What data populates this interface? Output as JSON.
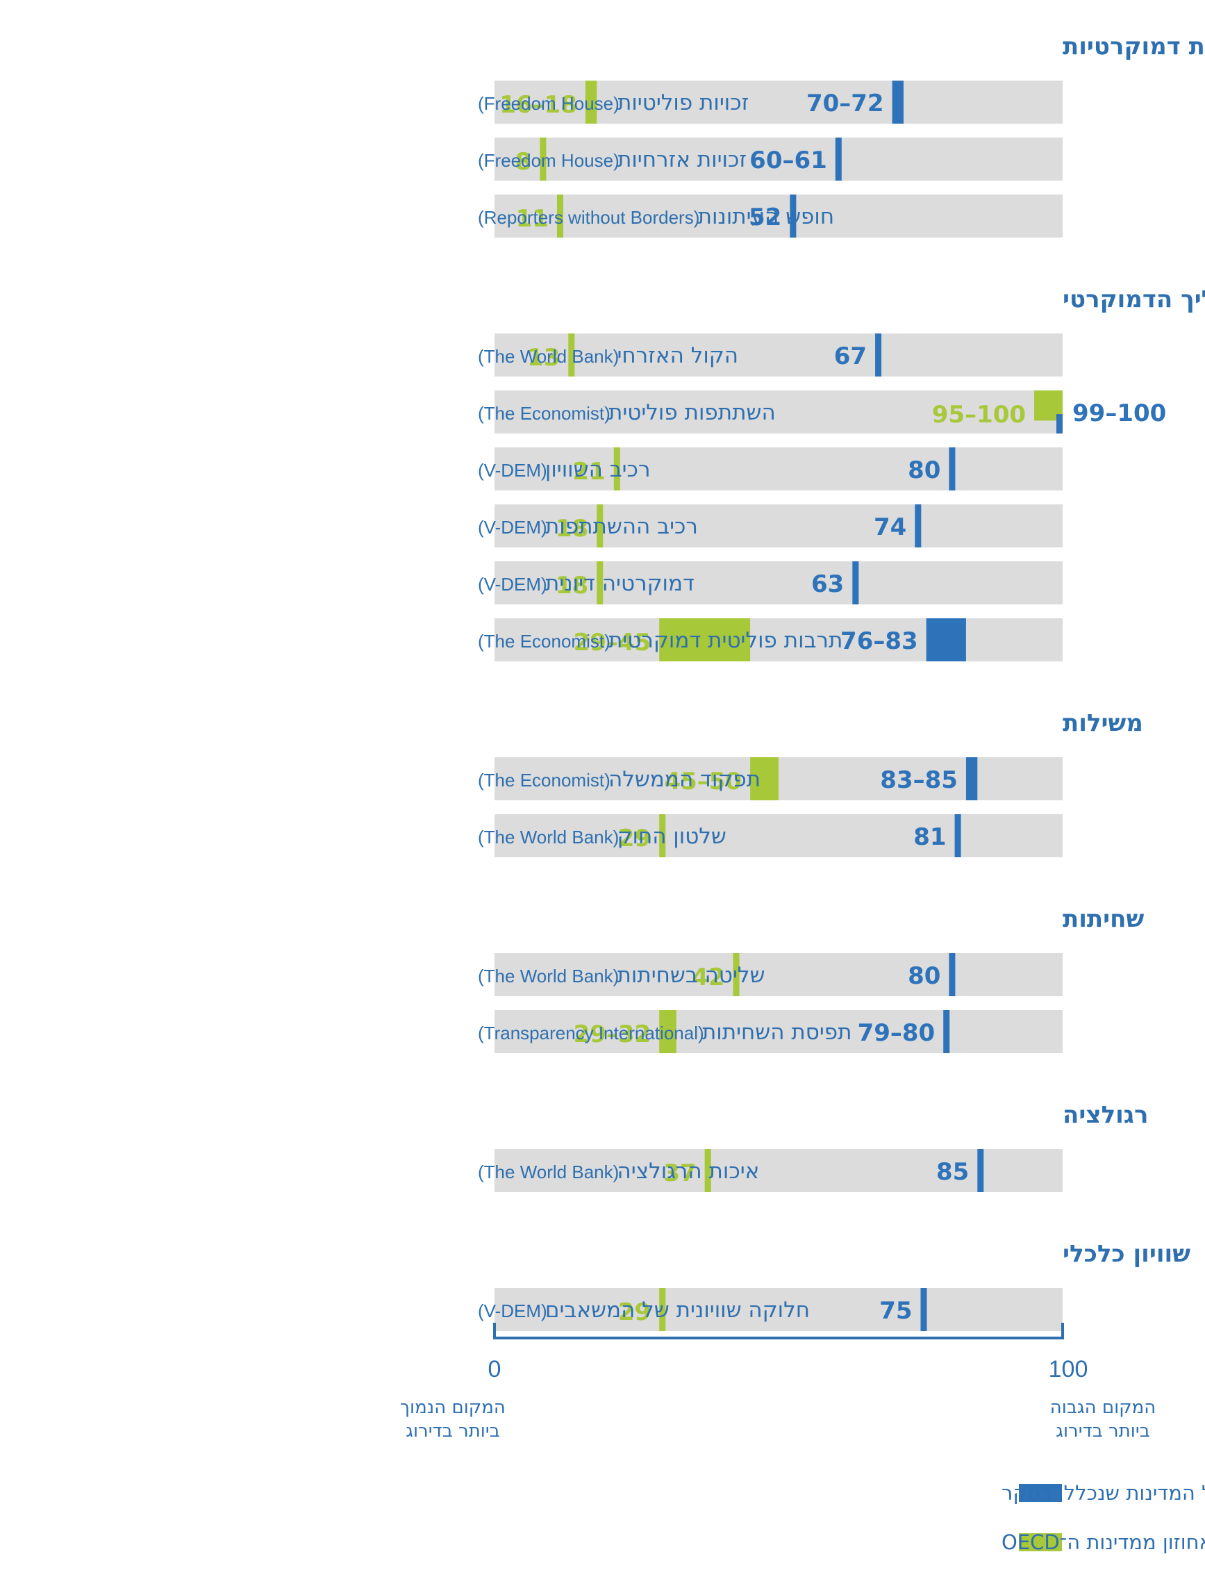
{
  "colors": {
    "track": "#dcdcdc",
    "all_countries": "#2e73b9",
    "oecd": "#a7c838",
    "text": "#2e6fb0",
    "axis": "#2e6fb0"
  },
  "chart_data": {
    "type": "bar",
    "orientation": "horizontal-range",
    "direction": "rtl",
    "xlim": [
      0,
      100
    ],
    "axis": {
      "min_label": "0",
      "max_label": "100",
      "min_caption": [
        "המקום הנמוך",
        "ביותר בדירוג"
      ],
      "max_caption": [
        "המקום הגבוה",
        "ביותר בדירוג"
      ]
    },
    "legend": [
      {
        "key": "all",
        "label": "אחוזון מכלל המדינות שנכללו בסקר"
      },
      {
        "key": "oecd",
        "label": "אחוזון ממדינות ה־OECD"
      }
    ],
    "sections": [
      {
        "title": "זכויות וחירויות דמוקרטיות",
        "rows": [
          {
            "label": "זכויות פוליטיות",
            "source": "(Freedom House)",
            "all": [
              70,
              72
            ],
            "all_label": "70–72",
            "oecd": [
              16,
              18
            ],
            "oecd_label": "16–18"
          },
          {
            "label": "זכויות אזרחיות",
            "source": "(Freedom House)",
            "all": [
              60,
              61
            ],
            "all_label": "60–61",
            "oecd": [
              8,
              8
            ],
            "oecd_label": "8"
          },
          {
            "label": "חופש העיתונות",
            "source": "(Reporters without Borders)",
            "all": [
              52,
              52
            ],
            "all_label": "52",
            "oecd": [
              11,
              11
            ],
            "oecd_label": "11"
          }
        ]
      },
      {
        "title": "התהליך הדמוקרטי",
        "rows": [
          {
            "label": "הקול האזרחי",
            "source": "(The World Bank)",
            "all": [
              67,
              67
            ],
            "all_label": "67",
            "oecd": [
              13,
              13
            ],
            "oecd_label": "13"
          },
          {
            "label": "השתתפות פוליטית",
            "source": "(The Economist)",
            "all": [
              99,
              100
            ],
            "all_label": "99–100",
            "oecd": [
              95,
              100
            ],
            "oecd_label": "95–100"
          },
          {
            "label": "רכיב השוויון",
            "source": "(V-DEM)",
            "all": [
              80,
              80
            ],
            "all_label": "80",
            "oecd": [
              21,
              21
            ],
            "oecd_label": "21"
          },
          {
            "label": "רכיב ההשתתפות",
            "source": "(V-DEM)",
            "all": [
              74,
              74
            ],
            "all_label": "74",
            "oecd": [
              18,
              18
            ],
            "oecd_label": "18"
          },
          {
            "label": "דמוקרטיה דיונית",
            "source": "(V-DEM)",
            "all": [
              63,
              63
            ],
            "all_label": "63",
            "oecd": [
              18,
              18
            ],
            "oecd_label": "18"
          },
          {
            "label": "תרבות פוליטית דמוקרטית",
            "source": "(The Economist)",
            "all": [
              76,
              83
            ],
            "all_label": "76–83",
            "oecd": [
              29,
              45
            ],
            "oecd_label": "29–45"
          }
        ]
      },
      {
        "title": "משילות",
        "rows": [
          {
            "label": "תפקוד הממשלה",
            "source": "(The Economist)",
            "all": [
              83,
              85
            ],
            "all_label": "83–85",
            "oecd": [
              45,
              50
            ],
            "oecd_label": "45–50"
          },
          {
            "label": "שלטון החוק",
            "source": "(The World Bank)",
            "all": [
              81,
              81
            ],
            "all_label": "81",
            "oecd": [
              29,
              29
            ],
            "oecd_label": "29"
          }
        ]
      },
      {
        "title": "שחיתות",
        "rows": [
          {
            "label": "שליטה בשחיתות",
            "source": "(The World Bank)",
            "all": [
              80,
              80
            ],
            "all_label": "80",
            "oecd": [
              42,
              42
            ],
            "oecd_label": "42"
          },
          {
            "label": "תפיסת השחיתות",
            "source": "(Transparency International)",
            "all": [
              79,
              80
            ],
            "all_label": "79–80",
            "oecd": [
              29,
              32
            ],
            "oecd_label": "29–32"
          }
        ]
      },
      {
        "title": "רגולציה",
        "rows": [
          {
            "label": "איכות הרגולציה",
            "source": "(The World Bank)",
            "all": [
              85,
              85
            ],
            "all_label": "85",
            "oecd": [
              37,
              37
            ],
            "oecd_label": "37"
          }
        ]
      },
      {
        "title": "שוויון כלכלי",
        "rows": [
          {
            "label": "חלוקה שוויונית של המשאבים",
            "source": "(V-DEM)",
            "all": [
              75,
              75
            ],
            "all_label": "75",
            "oecd": [
              29,
              29
            ],
            "oecd_label": "29"
          }
        ]
      }
    ]
  }
}
